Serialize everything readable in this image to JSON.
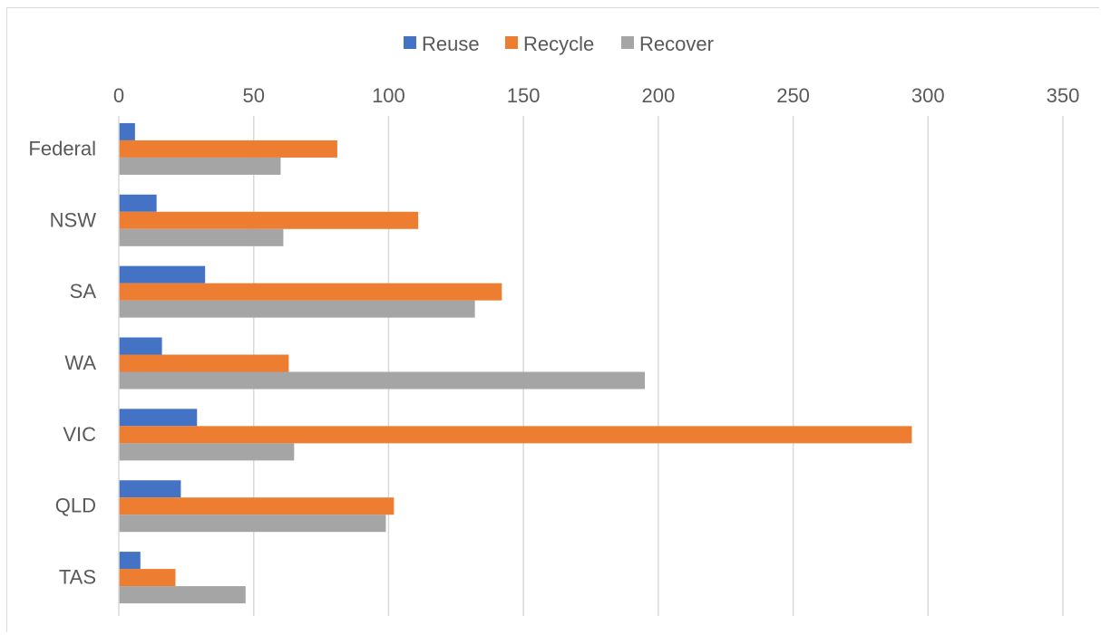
{
  "chart_data": {
    "type": "bar",
    "orientation": "horizontal",
    "categories": [
      "Federal",
      "NSW",
      "SA",
      "WA",
      "VIC",
      "QLD",
      "TAS"
    ],
    "series": [
      {
        "name": "Reuse",
        "color": "#4472c4",
        "values": [
          6,
          14,
          32,
          16,
          29,
          23,
          8
        ]
      },
      {
        "name": "Recycle",
        "color": "#ed7d31",
        "values": [
          81,
          111,
          142,
          63,
          294,
          102,
          21
        ]
      },
      {
        "name": "Recover",
        "color": "#a5a5a5",
        "values": [
          60,
          61,
          132,
          195,
          65,
          99,
          47
        ]
      }
    ],
    "xlim": [
      0,
      350
    ],
    "xticks": [
      0,
      50,
      100,
      150,
      200,
      250,
      300,
      350
    ],
    "x_axis_position": "top",
    "grid": true,
    "legend": "top-center",
    "title": "",
    "xlabel": "",
    "ylabel": ""
  }
}
